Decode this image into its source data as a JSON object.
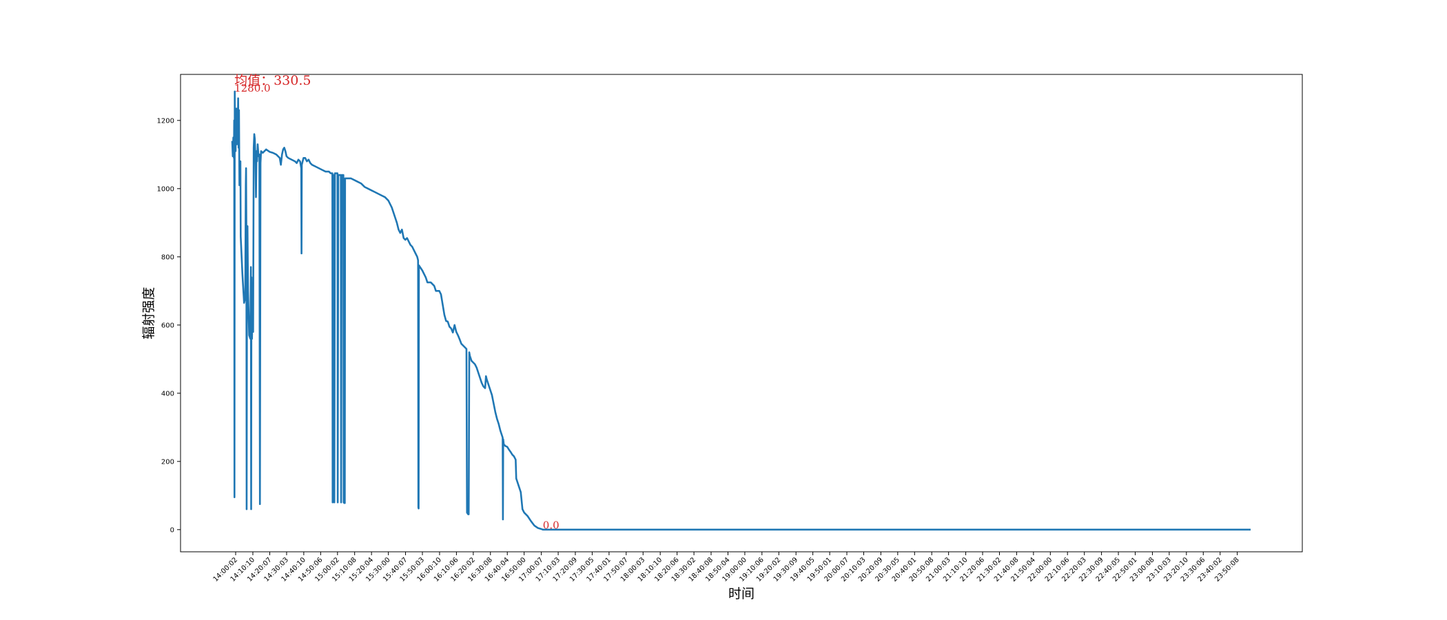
{
  "chart_data": {
    "type": "line",
    "title": "",
    "xlabel": "时间",
    "ylabel": "辐射强度",
    "ylim": [
      -65,
      1335
    ],
    "yticks": [
      0,
      200,
      400,
      600,
      800,
      1000,
      1200
    ],
    "grid": false,
    "legend": "none",
    "x_start": "13:58:00",
    "x_end": "23:58:00",
    "xtick_labels": [
      "14:00:02",
      "14:10:10",
      "14:20:07",
      "14:30:03",
      "14:40:10",
      "14:50:06",
      "15:00:02",
      "15:10:08",
      "15:20:04",
      "15:30:00",
      "15:40:07",
      "15:50:03",
      "16:00:10",
      "16:10:06",
      "16:20:02",
      "16:30:08",
      "16:40:04",
      "16:50:00",
      "17:00:07",
      "17:10:03",
      "17:20:09",
      "17:30:05",
      "17:40:01",
      "17:50:07",
      "18:00:03",
      "18:10:10",
      "18:20:06",
      "18:30:02",
      "18:40:08",
      "18:50:04",
      "19:00:00",
      "19:10:06",
      "19:20:02",
      "19:30:09",
      "19:40:05",
      "19:50:01",
      "20:00:07",
      "20:10:03",
      "20:20:09",
      "20:30:05",
      "20:40:01",
      "20:50:08",
      "21:00:03",
      "21:10:10",
      "21:20:06",
      "21:30:02",
      "21:40:08",
      "21:50:04",
      "22:00:00",
      "22:10:06",
      "22:20:03",
      "22:30:09",
      "22:40:05",
      "22:50:01",
      "23:00:08",
      "23:10:03",
      "23:20:10",
      "23:30:06",
      "23:40:02",
      "23:50:08"
    ],
    "series": [
      {
        "color": "#1f77b4",
        "points": [
          [
            "13:58:00",
            1140
          ],
          [
            "13:58:20",
            1095
          ],
          [
            "13:58:40",
            1150
          ],
          [
            "13:59:00",
            1090
          ],
          [
            "13:59:10",
            1200
          ],
          [
            "13:59:20",
            95
          ],
          [
            "13:59:30",
            1285
          ],
          [
            "13:59:45",
            1150
          ],
          [
            "14:00:00",
            1110
          ],
          [
            "14:00:15",
            1200
          ],
          [
            "14:00:30",
            1235
          ],
          [
            "14:00:45",
            1130
          ],
          [
            "14:01:00",
            1200
          ],
          [
            "14:01:15",
            1150
          ],
          [
            "14:01:30",
            1265
          ],
          [
            "14:01:45",
            1120
          ],
          [
            "14:02:00",
            1230
          ],
          [
            "14:02:15",
            1010
          ],
          [
            "14:02:30",
            1080
          ],
          [
            "14:02:40",
            1030
          ],
          [
            "14:02:50",
            1080
          ],
          [
            "14:03:00",
            860
          ],
          [
            "14:04:00",
            750
          ],
          [
            "14:05:00",
            665
          ],
          [
            "14:05:40",
            680
          ],
          [
            "14:06:00",
            1010
          ],
          [
            "14:06:10",
            1060
          ],
          [
            "14:06:20",
            900
          ],
          [
            "14:06:30",
            60
          ],
          [
            "14:06:40",
            600
          ],
          [
            "14:07:00",
            890
          ],
          [
            "14:07:20",
            700
          ],
          [
            "14:08:00",
            570
          ],
          [
            "14:08:40",
            560
          ],
          [
            "14:09:00",
            770
          ],
          [
            "14:09:10",
            60
          ],
          [
            "14:09:20",
            740
          ],
          [
            "14:09:40",
            560
          ],
          [
            "14:10:00",
            700
          ],
          [
            "14:10:20",
            580
          ],
          [
            "14:10:40",
            1120
          ],
          [
            "14:11:00",
            1160
          ],
          [
            "14:11:20",
            1145
          ],
          [
            "14:11:40",
            1090
          ],
          [
            "14:12:00",
            975
          ],
          [
            "14:12:20",
            1110
          ],
          [
            "14:12:40",
            1080
          ],
          [
            "14:13:00",
            1130
          ],
          [
            "14:13:30",
            1095
          ],
          [
            "14:14:00",
            1100
          ],
          [
            "14:14:20",
            75
          ],
          [
            "14:14:40",
            1075
          ],
          [
            "14:15:00",
            1110
          ],
          [
            "14:16:00",
            1105
          ],
          [
            "14:18:00",
            1115
          ],
          [
            "14:20:00",
            1108
          ],
          [
            "14:22:00",
            1105
          ],
          [
            "14:24:00",
            1100
          ],
          [
            "14:25:00",
            1095
          ],
          [
            "14:26:00",
            1090
          ],
          [
            "14:26:40",
            1070
          ],
          [
            "14:27:20",
            1100
          ],
          [
            "14:28:00",
            1115
          ],
          [
            "14:28:40",
            1120
          ],
          [
            "14:29:20",
            1110
          ],
          [
            "14:30:00",
            1095
          ],
          [
            "14:31:00",
            1090
          ],
          [
            "14:33:00",
            1085
          ],
          [
            "14:35:00",
            1080
          ],
          [
            "14:36:00",
            1075
          ],
          [
            "14:37:00",
            1085
          ],
          [
            "14:38:00",
            1080
          ],
          [
            "14:38:40",
            1060
          ],
          [
            "14:38:50",
            810
          ],
          [
            "14:39:00",
            1070
          ],
          [
            "14:40:00",
            1090
          ],
          [
            "14:41:00",
            1090
          ],
          [
            "14:42:00",
            1080
          ],
          [
            "14:43:00",
            1085
          ],
          [
            "14:44:00",
            1075
          ],
          [
            "14:45:00",
            1070
          ],
          [
            "14:47:00",
            1065
          ],
          [
            "14:49:00",
            1060
          ],
          [
            "14:51:00",
            1055
          ],
          [
            "14:53:00",
            1050
          ],
          [
            "14:55:00",
            1050
          ],
          [
            "14:56:00",
            1045
          ],
          [
            "14:57:00",
            1045
          ],
          [
            "14:57:10",
            80
          ],
          [
            "14:57:30",
            1040
          ],
          [
            "14:58:00",
            1040
          ],
          [
            "14:58:10",
            80
          ],
          [
            "14:58:30",
            1045
          ],
          [
            "15:00:00",
            1045
          ],
          [
            "15:00:10",
            80
          ],
          [
            "15:00:30",
            1040
          ],
          [
            "15:02:00",
            1040
          ],
          [
            "15:02:10",
            80
          ],
          [
            "15:02:30",
            1040
          ],
          [
            "15:03:30",
            1040
          ],
          [
            "15:03:40",
            80
          ],
          [
            "15:04:00",
            78
          ],
          [
            "15:04:20",
            78
          ],
          [
            "15:04:30",
            1030
          ],
          [
            "15:06:00",
            1030
          ],
          [
            "15:08:00",
            1030
          ],
          [
            "15:10:00",
            1025
          ],
          [
            "15:12:00",
            1020
          ],
          [
            "15:14:00",
            1015
          ],
          [
            "15:16:00",
            1005
          ],
          [
            "15:18:00",
            1000
          ],
          [
            "15:20:00",
            995
          ],
          [
            "15:22:00",
            990
          ],
          [
            "15:24:00",
            985
          ],
          [
            "15:26:00",
            980
          ],
          [
            "15:28:00",
            975
          ],
          [
            "15:30:00",
            965
          ],
          [
            "15:32:00",
            945
          ],
          [
            "15:34:00",
            915
          ],
          [
            "15:35:00",
            900
          ],
          [
            "15:36:00",
            880
          ],
          [
            "15:37:00",
            870
          ],
          [
            "15:38:00",
            880
          ],
          [
            "15:39:00",
            855
          ],
          [
            "15:40:00",
            850
          ],
          [
            "15:41:00",
            855
          ],
          [
            "15:42:00",
            845
          ],
          [
            "15:43:00",
            835
          ],
          [
            "15:44:00",
            830
          ],
          [
            "15:45:00",
            820
          ],
          [
            "15:46:00",
            810
          ],
          [
            "15:47:00",
            800
          ],
          [
            "15:47:30",
            790
          ],
          [
            "15:47:40",
            65
          ],
          [
            "15:47:50",
            62
          ],
          [
            "15:48:00",
            775
          ],
          [
            "15:50:00",
            760
          ],
          [
            "15:52:00",
            740
          ],
          [
            "15:53:00",
            725
          ],
          [
            "15:55:00",
            725
          ],
          [
            "15:57:00",
            715
          ],
          [
            "15:58:00",
            700
          ],
          [
            "16:00:00",
            700
          ],
          [
            "16:01:00",
            690
          ],
          [
            "16:02:00",
            660
          ],
          [
            "16:03:00",
            630
          ],
          [
            "16:04:00",
            612
          ],
          [
            "16:05:00",
            610
          ],
          [
            "16:06:00",
            595
          ],
          [
            "16:07:00",
            590
          ],
          [
            "16:08:00",
            578
          ],
          [
            "16:09:00",
            600
          ],
          [
            "16:10:00",
            580
          ],
          [
            "16:11:00",
            570
          ],
          [
            "16:12:00",
            558
          ],
          [
            "16:13:00",
            545
          ],
          [
            "16:14:00",
            540
          ],
          [
            "16:15:00",
            535
          ],
          [
            "16:16:00",
            530
          ],
          [
            "16:16:20",
            50
          ],
          [
            "16:17:00",
            45
          ],
          [
            "16:17:20",
            45
          ],
          [
            "16:17:40",
            520
          ],
          [
            "16:18:00",
            510
          ],
          [
            "16:19:00",
            495
          ],
          [
            "16:20:00",
            490
          ],
          [
            "16:21:00",
            485
          ],
          [
            "16:22:00",
            475
          ],
          [
            "16:23:00",
            460
          ],
          [
            "16:24:00",
            445
          ],
          [
            "16:25:00",
            430
          ],
          [
            "16:26:00",
            420
          ],
          [
            "16:27:00",
            415
          ],
          [
            "16:27:30",
            450
          ],
          [
            "16:28:00",
            440
          ],
          [
            "16:29:00",
            425
          ],
          [
            "16:30:00",
            410
          ],
          [
            "16:31:00",
            395
          ],
          [
            "16:32:00",
            370
          ],
          [
            "16:33:00",
            345
          ],
          [
            "16:34:00",
            325
          ],
          [
            "16:35:00",
            310
          ],
          [
            "16:36:00",
            290
          ],
          [
            "16:37:00",
            275
          ],
          [
            "16:37:20",
            270
          ],
          [
            "16:37:30",
            30
          ],
          [
            "16:37:40",
            265
          ],
          [
            "16:38:00",
            250
          ],
          [
            "16:39:00",
            245
          ],
          [
            "16:40:00",
            243
          ],
          [
            "16:41:00",
            235
          ],
          [
            "16:42:00",
            228
          ],
          [
            "16:43:00",
            220
          ],
          [
            "16:44:00",
            215
          ],
          [
            "16:45:00",
            205
          ],
          [
            "16:45:20",
            150
          ],
          [
            "16:46:00",
            140
          ],
          [
            "16:47:00",
            125
          ],
          [
            "16:48:00",
            110
          ],
          [
            "16:49:00",
            60
          ],
          [
            "16:50:00",
            50
          ],
          [
            "16:52:00",
            40
          ],
          [
            "16:54:00",
            25
          ],
          [
            "16:56:00",
            12
          ],
          [
            "16:58:00",
            5
          ],
          [
            "17:00:00",
            2
          ],
          [
            "17:01:00",
            0
          ],
          [
            "17:30:00",
            0
          ],
          [
            "18:00:00",
            0
          ],
          [
            "19:00:00",
            0
          ],
          [
            "20:00:00",
            0
          ],
          [
            "21:00:00",
            0
          ],
          [
            "22:00:00",
            0
          ],
          [
            "23:00:00",
            0
          ],
          [
            "23:58:00",
            0
          ]
        ]
      }
    ],
    "annotations": [
      {
        "text": "均值：330.5",
        "time": "13:59:15",
        "y": 1305,
        "size": "large"
      },
      {
        "text": "1280.0",
        "time": "13:59:15",
        "y": 1285,
        "size": "small"
      },
      {
        "text": "0.0",
        "time": "17:01:00",
        "y": 3,
        "size": "small"
      }
    ]
  }
}
